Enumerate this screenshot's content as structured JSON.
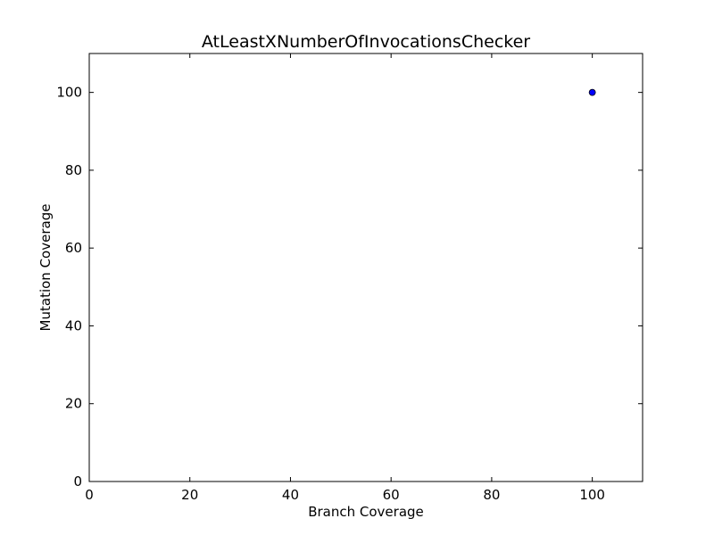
{
  "chart_data": {
    "type": "scatter",
    "title": "AtLeastXNumberOfInvocationsChecker",
    "xlabel": "Branch Coverage",
    "ylabel": "Mutation Coverage",
    "xlim": [
      0,
      110
    ],
    "ylim": [
      0,
      110
    ],
    "xticks": [
      0,
      20,
      40,
      60,
      80,
      100
    ],
    "yticks": [
      0,
      20,
      40,
      60,
      80,
      100
    ],
    "xtick_labels": [
      "0",
      "20",
      "40",
      "60",
      "80",
      "100"
    ],
    "ytick_labels": [
      "0",
      "20",
      "40",
      "60",
      "80",
      "100"
    ],
    "grid": false,
    "series": [
      {
        "points": [
          {
            "x": 100,
            "y": 100
          }
        ],
        "color": "#0000ff"
      }
    ]
  }
}
